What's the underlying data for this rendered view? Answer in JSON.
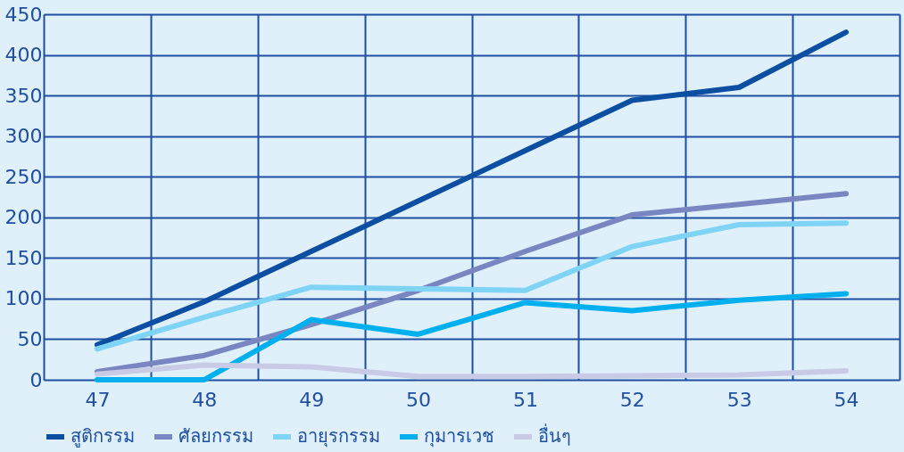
{
  "chart_data": {
    "type": "line",
    "categories": [
      "47",
      "48",
      "49",
      "50",
      "51",
      "52",
      "53",
      "54"
    ],
    "series": [
      {
        "name": "สูติกรรม",
        "color": "#0b4ea2",
        "values": [
          43,
          96,
          158,
          220,
          282,
          344,
          360,
          428
        ]
      },
      {
        "name": "ศัลยกรรม",
        "color": "#7a86c2",
        "values": [
          10,
          30,
          68,
          110,
          158,
          203,
          216,
          229
        ]
      },
      {
        "name": "อายุรกรรม",
        "color": "#7fd3f5",
        "values": [
          38,
          77,
          114,
          112,
          110,
          164,
          191,
          193
        ]
      },
      {
        "name": "กุมารเวช",
        "color": "#00b0ee",
        "values": [
          0,
          0,
          74,
          56,
          95,
          85,
          98,
          106
        ]
      },
      {
        "name": "อื่นๆ",
        "color": "#c8cae6",
        "values": [
          7,
          18,
          16,
          4,
          4,
          5,
          6,
          11
        ]
      }
    ],
    "ylim": [
      0,
      450
    ],
    "yticks": [
      0,
      50,
      100,
      150,
      200,
      250,
      300,
      350,
      400,
      450
    ],
    "grid": true,
    "legend": "bottom",
    "marker": "none",
    "line_style": "solid"
  }
}
